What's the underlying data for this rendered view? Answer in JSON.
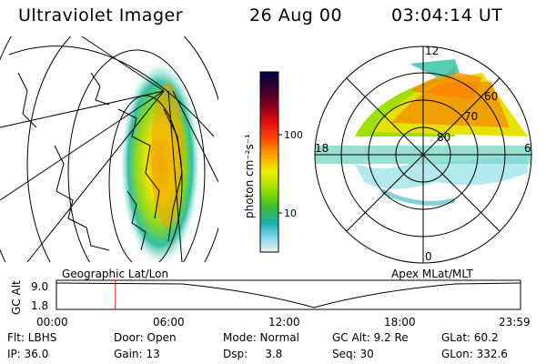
{
  "header": {
    "title": "Ultraviolet Imager",
    "date": "26 Aug 00",
    "time": "03:04:14 UT"
  },
  "colorbar": {
    "label": "photon cm⁻²s⁻¹",
    "ticks": [
      "100",
      "10"
    ],
    "colors": [
      "#000040",
      "#300030",
      "#800020",
      "#c00010",
      "#ff3000",
      "#ff9000",
      "#ffd000",
      "#f0f000",
      "#a0e000",
      "#40c020",
      "#20b0a0",
      "#40d0e0",
      "#a0e0f0",
      "#f0f0f0"
    ]
  },
  "map_left": {
    "caption": "Geographic Lat/Lon"
  },
  "map_right": {
    "caption": "Apex MLat/MLT",
    "mlt_labels": [
      "12",
      "18",
      "6",
      "0"
    ],
    "lat_labels": [
      "60",
      "70",
      "80"
    ]
  },
  "altitude_plot": {
    "ylabel": "GC Alt",
    "yticks": [
      "9.0",
      "1.8"
    ],
    "xticks": [
      "00:00",
      "06:00",
      "12:00",
      "18:00",
      "23:59"
    ],
    "cursor_time_fraction": 0.127
  },
  "status": {
    "row1": [
      {
        "label": "Flt: LBHS"
      },
      {
        "label": "Door: Open"
      },
      {
        "label": "Mode: Normal"
      },
      {
        "label": "GC Alt: 9.2 Re"
      },
      {
        "label": "GLat:  60.2"
      }
    ],
    "row2": [
      {
        "label": "IP: 36.0"
      },
      {
        "label": "Gain: 13"
      },
      {
        "label": "Dsp:     3.8"
      },
      {
        "label": "Seq: 30"
      },
      {
        "label": "GLon: 332.6"
      }
    ]
  }
}
